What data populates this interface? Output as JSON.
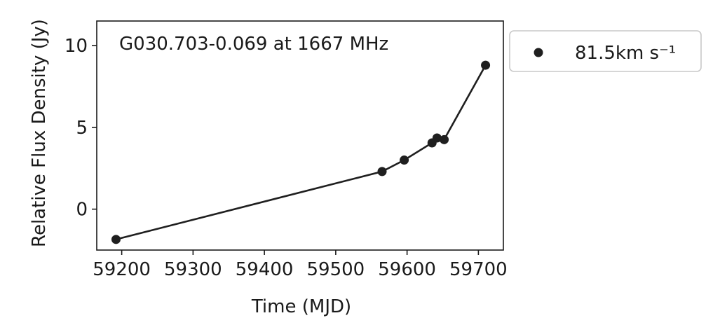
{
  "chart_data": {
    "type": "line",
    "title": "G030.703-0.069 at 1667 MHz",
    "xlabel": "Time (MJD)",
    "ylabel": "Relative Flux Density (Jy)",
    "xlim": [
      59165,
      59735
    ],
    "ylim": [
      -2.5,
      11.5
    ],
    "xticks": [
      59200,
      59300,
      59400,
      59500,
      59600,
      59700
    ],
    "yticks": [
      0,
      5,
      10
    ],
    "grid": false,
    "legend_position": "outside-top-right",
    "series": [
      {
        "name": "81.5km s⁻¹",
        "color": "#1f1f1f",
        "marker": "circle",
        "x": [
          59192,
          59565,
          59596,
          59635,
          59642,
          59652,
          59710
        ],
        "y": [
          -1.85,
          2.3,
          3.0,
          4.05,
          4.35,
          4.25,
          8.8
        ]
      }
    ]
  }
}
